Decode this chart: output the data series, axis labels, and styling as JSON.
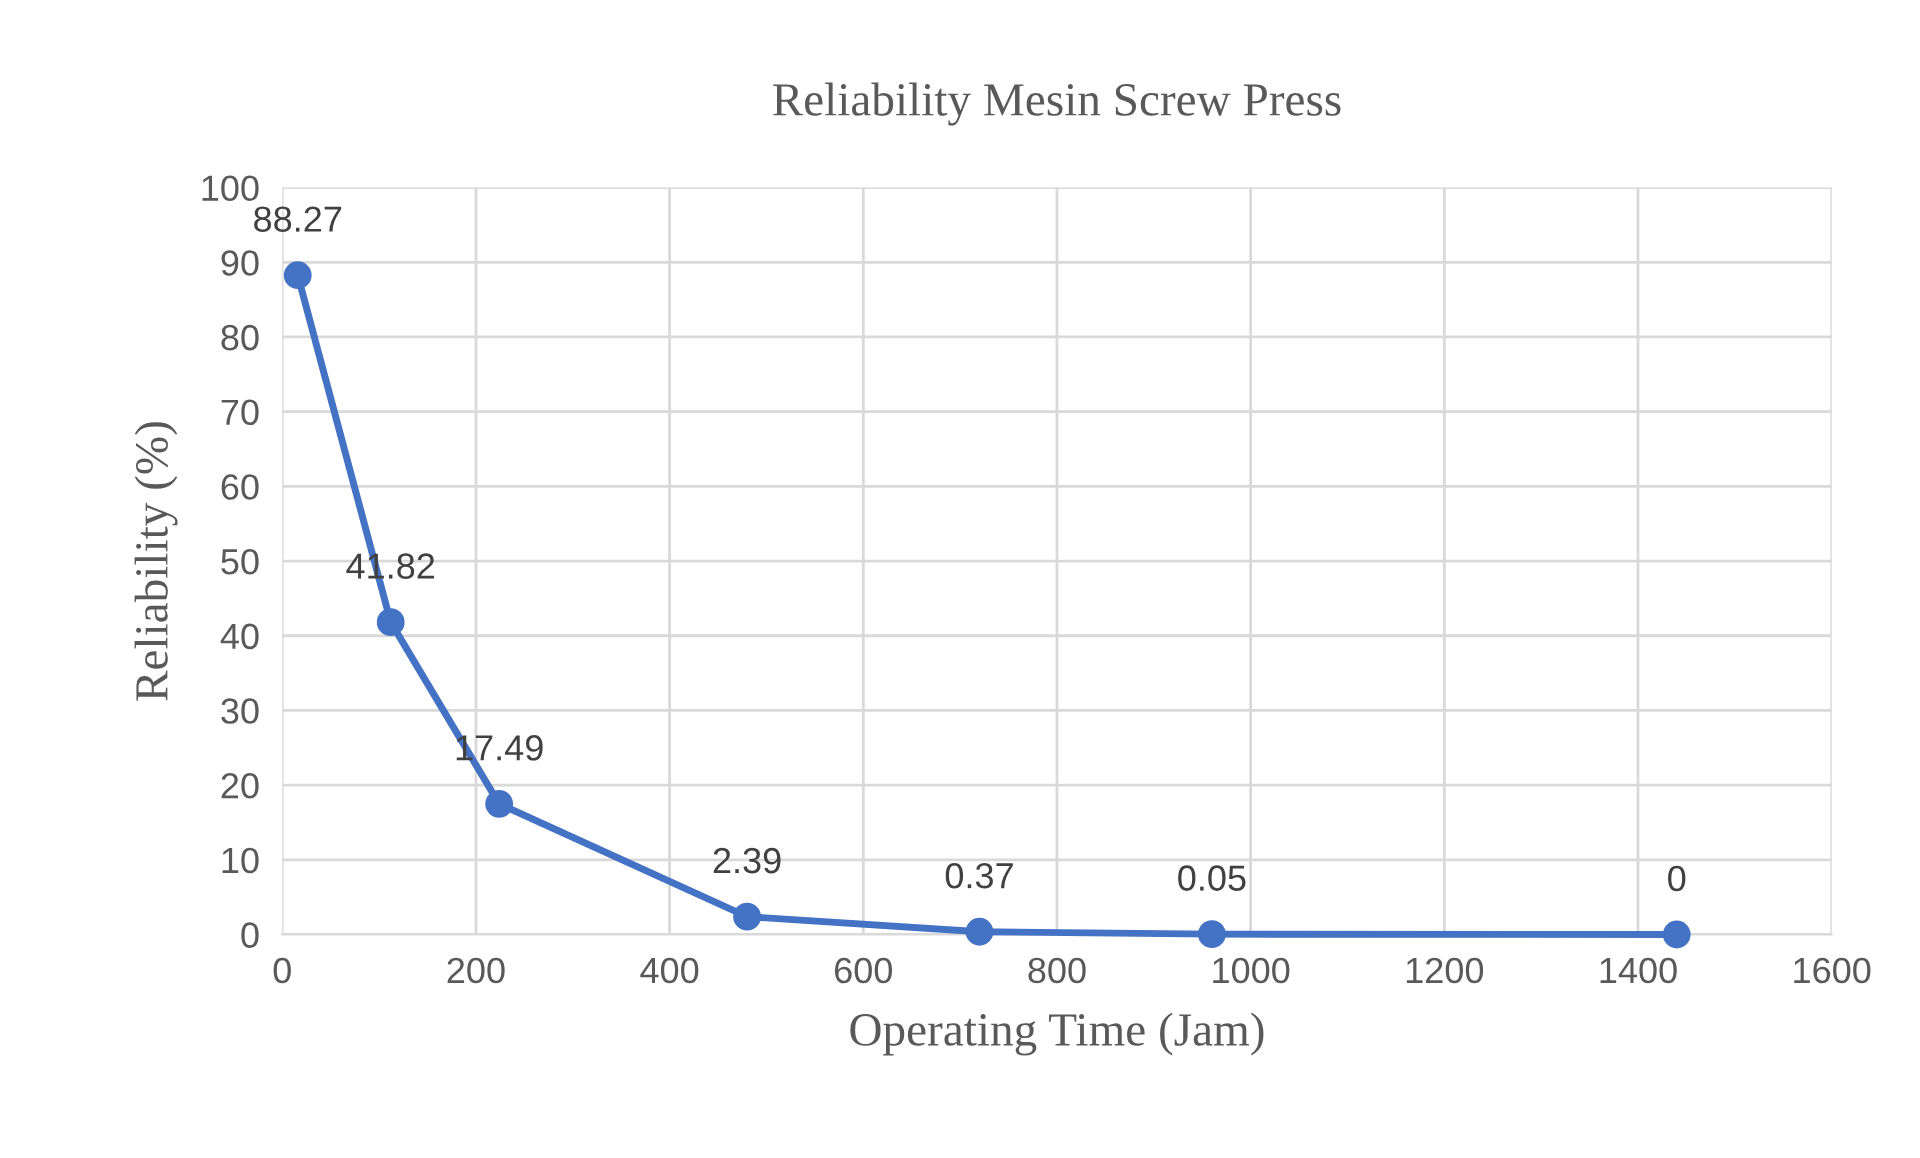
{
  "chart_data": {
    "type": "line",
    "title": "Reliability Mesin Screw Press",
    "xlabel": "Operating Time (Jam)",
    "ylabel": "Reliability (%)",
    "x": [
      16,
      112,
      224,
      480,
      720,
      960,
      1440
    ],
    "series": [
      {
        "color": "#4472c4",
        "values": [
          88.27,
          41.82,
          17.49,
          2.39,
          0.37,
          0.05,
          0
        ]
      }
    ],
    "xlim": [
      0,
      1600
    ],
    "xticks": [
      0,
      200,
      400,
      600,
      800,
      1000,
      1200,
      1400,
      1600
    ],
    "ylim": [
      0,
      100
    ],
    "yticks": [
      0,
      10,
      20,
      30,
      40,
      50,
      60,
      70,
      80,
      90,
      100
    ],
    "grid": true,
    "marker": "circle",
    "line_style": "solid",
    "data_labels": true
  }
}
